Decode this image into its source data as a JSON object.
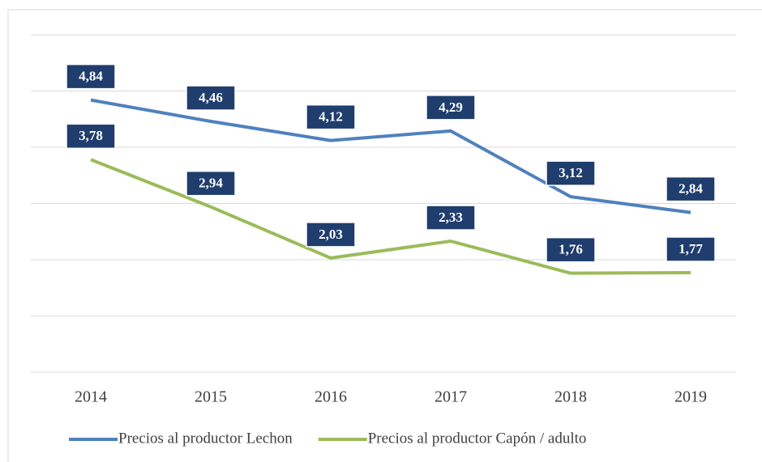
{
  "chart_data": {
    "type": "line",
    "categories": [
      "2014",
      "2015",
      "2016",
      "2017",
      "2018",
      "2019"
    ],
    "series": [
      {
        "name": "Precios al productor Lechon",
        "color": "#4f81bd",
        "values": [
          4.84,
          4.46,
          4.12,
          4.29,
          3.12,
          2.84
        ],
        "value_labels": [
          "4,84",
          "4,46",
          "4,12",
          "4,29",
          "3,12",
          "2,84"
        ]
      },
      {
        "name": "Precios al productor Capón / adulto",
        "color": "#9bbb59",
        "values": [
          3.78,
          2.94,
          2.03,
          2.33,
          1.76,
          1.77
        ],
        "value_labels": [
          "3,78",
          "2,94",
          "2,03",
          "2,33",
          "1,76",
          "1,77"
        ]
      }
    ],
    "ylim": [
      0,
      6
    ],
    "yticks": [
      0,
      1,
      2,
      3,
      4,
      5,
      6
    ],
    "grid": true,
    "legend": "bottom"
  }
}
